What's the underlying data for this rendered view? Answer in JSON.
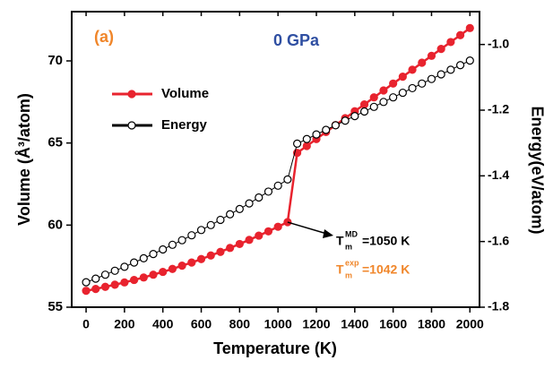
{
  "chart_data": {
    "type": "line",
    "x_label": "Temperature (K)",
    "y_label": "Volume (Å³/atom)",
    "y2_label": "Energy(eV/atom)",
    "x": [
      0,
      50,
      100,
      150,
      200,
      250,
      300,
      350,
      400,
      450,
      500,
      550,
      600,
      650,
      700,
      750,
      800,
      850,
      900,
      950,
      1000,
      1050,
      1100,
      1150,
      1200,
      1250,
      1300,
      1350,
      1400,
      1450,
      1500,
      1550,
      1600,
      1650,
      1700,
      1750,
      1800,
      1850,
      1900,
      1950,
      2000
    ],
    "series": [
      {
        "name": "Volume",
        "color": "#e8232e",
        "marker": "filled",
        "values": [
          56.0,
          56.11,
          56.24,
          56.37,
          56.51,
          56.66,
          56.81,
          56.98,
          57.15,
          57.33,
          57.53,
          57.72,
          57.93,
          58.15,
          58.37,
          58.61,
          58.85,
          59.1,
          59.36,
          59.62,
          59.9,
          60.18,
          64.4,
          64.82,
          65.24,
          65.67,
          66.09,
          66.51,
          66.93,
          67.35,
          67.78,
          68.2,
          68.62,
          69.04,
          69.46,
          69.89,
          70.31,
          70.73,
          71.15,
          71.57,
          72.0
        ]
      },
      {
        "name": "Energy",
        "color": "#000000",
        "marker": "open",
        "axis": "y2",
        "values": [
          -1.724,
          -1.713,
          -1.701,
          -1.689,
          -1.677,
          -1.664,
          -1.651,
          -1.638,
          -1.624,
          -1.61,
          -1.596,
          -1.581,
          -1.565,
          -1.55,
          -1.534,
          -1.517,
          -1.501,
          -1.484,
          -1.466,
          -1.448,
          -1.43,
          -1.411,
          -1.302,
          -1.288,
          -1.274,
          -1.26,
          -1.246,
          -1.232,
          -1.218,
          -1.204,
          -1.19,
          -1.175,
          -1.161,
          -1.147,
          -1.133,
          -1.119,
          -1.105,
          -1.091,
          -1.077,
          -1.063,
          -1.049
        ]
      }
    ],
    "xlim": [
      -75,
      2050
    ],
    "xticks": [
      0,
      200,
      400,
      600,
      800,
      1000,
      1200,
      1400,
      1600,
      1800,
      2000
    ],
    "ylim": [
      55,
      73
    ],
    "yticks": [
      55,
      60,
      65,
      70
    ],
    "y2lim": [
      -1.8,
      -0.9
    ],
    "y2ticks": [
      -1.8,
      -1.6,
      -1.4,
      -1.2,
      {
        "value": -1,
        "label": "-1.0"
      }
    ],
    "legend": "upper left",
    "annotations": [
      {
        "text": "(a)",
        "color": "#f0862a"
      },
      {
        "text": "0 GPa",
        "color": "#2f4fa2"
      },
      {
        "base": "T",
        "sub": "m",
        "sup": "MD",
        "rest": "=1050 K",
        "color": "#000000"
      },
      {
        "base": "T",
        "sub": "m",
        "sup": "exp",
        "rest": "=1042 K",
        "color": "#f0862a"
      }
    ]
  }
}
